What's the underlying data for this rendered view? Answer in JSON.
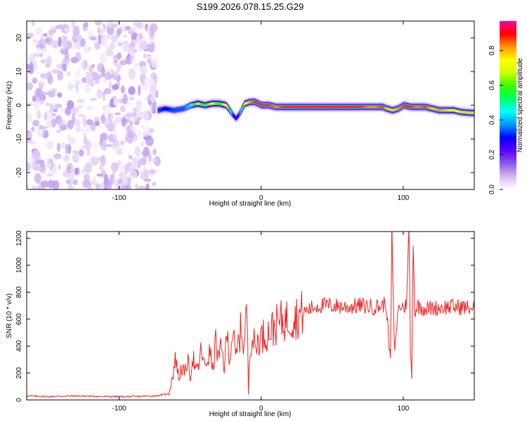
{
  "window_title": "S199.2026.078.15.25.G29",
  "chart_data": [
    {
      "type": "heatmap",
      "title": "S199.2026.078.15.25.G29",
      "xlabel": "Height of straight line (km)",
      "ylabel": "Frequency (Hz)",
      "xlim": [
        -165,
        150
      ],
      "ylim": [
        -25,
        25
      ],
      "xticks": [
        -100,
        0,
        100
      ],
      "yticks": [
        -20,
        -10,
        0,
        10,
        20
      ],
      "colorbar": {
        "label": "Normalized spectral amplitude",
        "range": [
          0.0,
          0.97
        ],
        "ticks": [
          0.0,
          0.2,
          0.4,
          0.6,
          0.8
        ],
        "tick_labels": [
          "0.0",
          "0.2",
          "0.4",
          "0.6",
          "0.8"
        ],
        "colormap": [
          "#ffffff",
          "#d6b9f2",
          "#8a5ce6",
          "#5a00ff",
          "#0000ff",
          "#0099ff",
          "#00ffff",
          "#00ff66",
          "#33ff00",
          "#ccff00",
          "#ffff00",
          "#ff9900",
          "#ff0000",
          "#ff0099"
        ]
      },
      "noise_region": {
        "x_range": [
          -165,
          -73
        ],
        "y_range": [
          -25,
          25
        ],
        "amplitude": "low (0.0-0.1)"
      },
      "ridge": {
        "description": "frequency of peak spectral amplitude vs height",
        "x": [
          -73,
          -68,
          -62,
          -55,
          -50,
          -45,
          -40,
          -35,
          -30,
          -25,
          -20,
          -18,
          -15,
          -12,
          -8,
          -5,
          0,
          5,
          10,
          15,
          20,
          30,
          40,
          50,
          60,
          70,
          75,
          80,
          85,
          88,
          92,
          96,
          100,
          105,
          110,
          115,
          120,
          125,
          130,
          135,
          140,
          145,
          150
        ],
        "y": [
          -1.5,
          -1.0,
          -1.5,
          -1.0,
          0.0,
          0.5,
          0.0,
          0.5,
          0.5,
          0.0,
          -3.0,
          -4.0,
          -2.0,
          0.5,
          1.0,
          1.0,
          0.0,
          0.0,
          -0.5,
          -0.5,
          -0.5,
          -0.5,
          -0.5,
          -0.5,
          -0.5,
          -0.5,
          -0.5,
          -0.5,
          -0.5,
          -1.0,
          -1.5,
          -1.0,
          0.0,
          -0.5,
          -0.5,
          -0.5,
          -1.0,
          -1.5,
          -1.5,
          -1.5,
          -2.0,
          -2.2,
          -2.3
        ],
        "peak_amplitude": [
          0.35,
          0.3,
          0.35,
          0.35,
          0.45,
          0.7,
          0.55,
          0.75,
          0.55,
          0.8,
          0.3,
          0.25,
          0.4,
          0.75,
          0.85,
          0.9,
          0.9,
          0.9,
          0.85,
          0.9,
          0.9,
          0.9,
          0.9,
          0.9,
          0.9,
          0.9,
          0.85,
          0.85,
          0.9,
          0.8,
          0.8,
          0.85,
          0.9,
          0.9,
          0.85,
          0.9,
          0.8,
          0.85,
          0.8,
          0.75,
          0.8,
          0.8,
          0.8
        ]
      }
    },
    {
      "type": "line",
      "xlabel": "Height of straight line (km)",
      "ylabel": "SNR (10 * v/v)",
      "xlim": [
        -165,
        150
      ],
      "ylim": [
        0,
        1250
      ],
      "xticks": [
        -100,
        0,
        100
      ],
      "yticks": [
        0,
        200,
        400,
        600,
        800,
        1000,
        1200
      ],
      "series": [
        {
          "name": "SNR",
          "color": "#ee2222",
          "x": [
            -165,
            -150,
            -130,
            -110,
            -90,
            -75,
            -65,
            -62,
            -60,
            -58,
            -56,
            -54,
            -52,
            -50,
            -48,
            -46,
            -44,
            -42,
            -40,
            -38,
            -36,
            -34,
            -32,
            -30,
            -28,
            -26,
            -24,
            -22,
            -20,
            -18,
            -16,
            -14,
            -12,
            -10,
            -9,
            -8,
            -6,
            -4,
            -2,
            0,
            5,
            10,
            15,
            20,
            25,
            30,
            35,
            40,
            50,
            60,
            70,
            80,
            85,
            88,
            90,
            91,
            92,
            93,
            94,
            96,
            98,
            100,
            102,
            104,
            105,
            106,
            107,
            108,
            110,
            115,
            120,
            130,
            140,
            150
          ],
          "y": [
            30,
            25,
            30,
            25,
            25,
            30,
            45,
            200,
            320,
            150,
            250,
            180,
            300,
            180,
            330,
            200,
            250,
            380,
            240,
            300,
            350,
            220,
            430,
            300,
            380,
            250,
            480,
            320,
            520,
            300,
            420,
            540,
            380,
            700,
            50,
            420,
            460,
            380,
            450,
            470,
            500,
            550,
            590,
            600,
            620,
            650,
            680,
            700,
            700,
            690,
            700,
            690,
            700,
            720,
            400,
            300,
            1240,
            700,
            350,
            650,
            700,
            690,
            700,
            1240,
            400,
            150,
            1250,
            650,
            700,
            680,
            680,
            690,
            690,
            680
          ]
        }
      ]
    }
  ]
}
